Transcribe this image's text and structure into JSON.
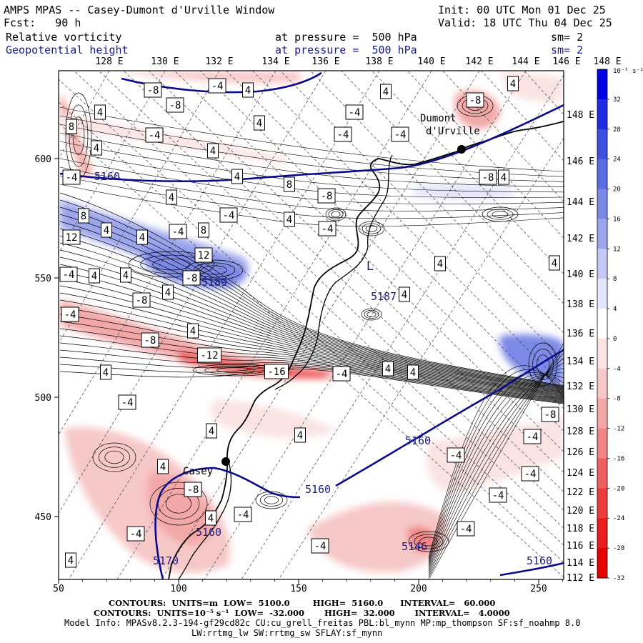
{
  "header": {
    "title": "AMPS MPAS -- Casey-Dumont d'Urville Window",
    "init": "Init: 00 UTC Mon 01 Dec 25",
    "forecast": "Fcst:   90 h",
    "valid": "Valid: 18 UTC Thu 04 Dec 25",
    "field1": {
      "name": "Relative vorticity",
      "level": "at pressure =  500 hPa",
      "smooth": "sm= 2"
    },
    "field2": {
      "name": "Geopotential height",
      "level": "at pressure =  500 hPa",
      "smooth": "sm= 2"
    }
  },
  "axes": {
    "x_ticks": [
      "50",
      "100",
      "150",
      "200",
      "250"
    ],
    "y_ticks": [
      "600",
      "550",
      "500",
      "450"
    ],
    "lon_labels": [
      "128 E",
      "130 E",
      "132 E",
      "134 E",
      "136 E",
      "138 E",
      "140 E",
      "142 E",
      "144 E",
      "146 E",
      "148 E"
    ],
    "lat_labels": [
      "148 E",
      "146 E",
      "144 E",
      "142 E",
      "140 E",
      "138 E",
      "136 E",
      "134 E",
      "132 E",
      "130 E",
      "128 E",
      "126 E",
      "124 E",
      "122 E",
      "120 E",
      "118 E",
      "116 E",
      "114 E",
      "112 E"
    ]
  },
  "colorbar": {
    "unit": "10⁻⁵ s⁻¹",
    "labels": [
      "32",
      "28",
      "24",
      "20",
      "16",
      "12",
      "8",
      "4",
      "0",
      "-4",
      "-8",
      "-12",
      "-16",
      "-20",
      "-24",
      "-28",
      "-32"
    ],
    "colors": [
      "#0000e6",
      "#1e2be0",
      "#3d4fe0",
      "#5a6ce2",
      "#7b89e6",
      "#9ca6ec",
      "#c3c9f3",
      "#e4e6fa",
      "#ffffff",
      "#fbe3e3",
      "#f7c8c8",
      "#f3a8a8",
      "#ef8585",
      "#ee6060",
      "#ec3c3c",
      "#ea1c1c",
      "#e60000"
    ]
  },
  "stations": [
    {
      "name": "Dumont d'Urville",
      "lat": -66.66,
      "lon": 140.0
    },
    {
      "name": "Casey",
      "lat": -66.28,
      "lon": 110.5
    }
  ],
  "height_labels": [
    "5160",
    "5160",
    "5160",
    "5160",
    "5160",
    "5146",
    "5187",
    "5189",
    "5170"
  ],
  "vort_labels": [
    "-8",
    "-4",
    "4",
    "-8",
    "4",
    "-4",
    "4",
    "-4",
    "8",
    "-8",
    "4",
    "-4",
    "-4",
    "4",
    "4",
    "4",
    "-8",
    "4",
    "4",
    "8",
    "4",
    "-8",
    "4",
    "-4",
    "-4",
    "12",
    "8",
    "4",
    "-4",
    "12",
    "-8",
    "4",
    "-4",
    "8",
    "4",
    "4",
    "-8",
    "4",
    "-4",
    "-12",
    "-8",
    "-16",
    "-4",
    "4",
    "4",
    "-4",
    "4",
    "4",
    "4",
    "4",
    "-8",
    "-4",
    "-4",
    "-4",
    "-8",
    "4",
    "-4",
    "4",
    "-4",
    "-4",
    "4",
    "-4",
    "-4",
    "4",
    "-4",
    "4",
    "4"
  ],
  "low_label": "L",
  "footer": {
    "line1": "CONTOURS:  UNITS=m  LOW=  5100.0        HIGH=  5160.0      INTERVAL=   60.000",
    "line2": "CONTOURS:  UNITS=10⁻⁵ s⁻¹  LOW=  -32.000       HIGH=  32.000       INTERVAL=   4.0000",
    "line3": "Model Info: MPASv8.2.3-194-gf29cd82c CU:cu_grell_freitas PBL:bl_mynn MP:mp_thompson SF:sf_noahmp 8.0",
    "line4": "LW:rrtmg_lw SW:rrtmg_sw SFLAY:sf_mynn"
  }
}
